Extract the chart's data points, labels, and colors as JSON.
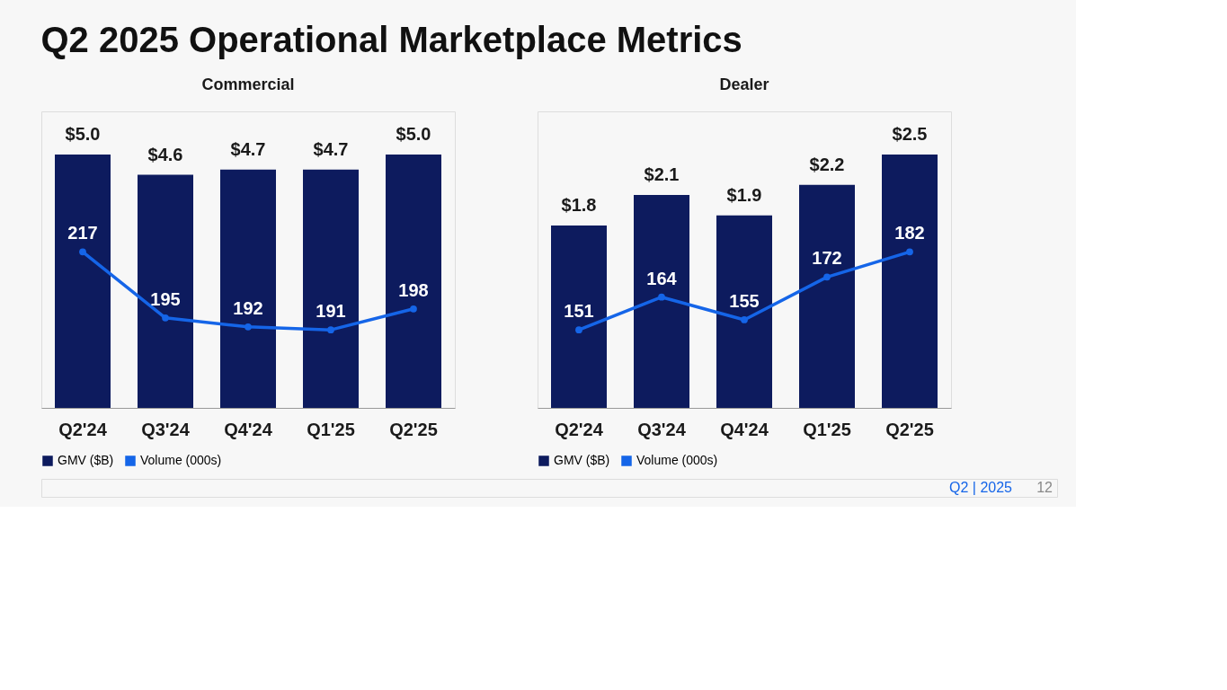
{
  "chart_data": [
    {
      "type": "bar",
      "title": "Q2 2025 Operational Marketplace Metrics",
      "subtitle": "Commercial",
      "categories": [
        "Q2'24",
        "Q3'24",
        "Q4'24",
        "Q1'25",
        "Q2'25"
      ],
      "series": [
        {
          "name": "GMV ($B)",
          "color": "#0d1b5e",
          "values": [
            5.0,
            4.6,
            4.7,
            4.7,
            5.0
          ],
          "value_labels": [
            "$5.0",
            "$4.6",
            "$4.7",
            "$4.7",
            "$5.0"
          ]
        },
        {
          "name": "Volume (000s)",
          "type": "line",
          "axis": "y2",
          "color": "#1565e8",
          "values": [
            217,
            195,
            192,
            191,
            198
          ],
          "value_labels": [
            "217",
            "195",
            "192",
            "191",
            "198"
          ]
        }
      ],
      "legend": "bottom",
      "tick_labels": "x",
      "marker": "circle"
    },
    {
      "type": "bar",
      "subtitle": "Dealer",
      "categories": [
        "Q2'24",
        "Q3'24",
        "Q4'24",
        "Q1'25",
        "Q2'25"
      ],
      "series": [
        {
          "name": "GMV ($B)",
          "color": "#0d1b5e",
          "values": [
            1.8,
            2.1,
            1.9,
            2.2,
            2.5
          ],
          "value_labels": [
            "$1.8",
            "$2.1",
            "$1.9",
            "$2.2",
            "$2.5"
          ]
        },
        {
          "name": "Volume (000s)",
          "type": "line",
          "axis": "y2",
          "color": "#1565e8",
          "values": [
            151,
            164,
            155,
            172,
            182
          ],
          "value_labels": [
            "151",
            "164",
            "155",
            "172",
            "182"
          ]
        }
      ],
      "legend": "bottom",
      "tick_labels": "x",
      "marker": "circle",
      "annotations": [
        "Q2 | 2025",
        "12"
      ]
    }
  ]
}
